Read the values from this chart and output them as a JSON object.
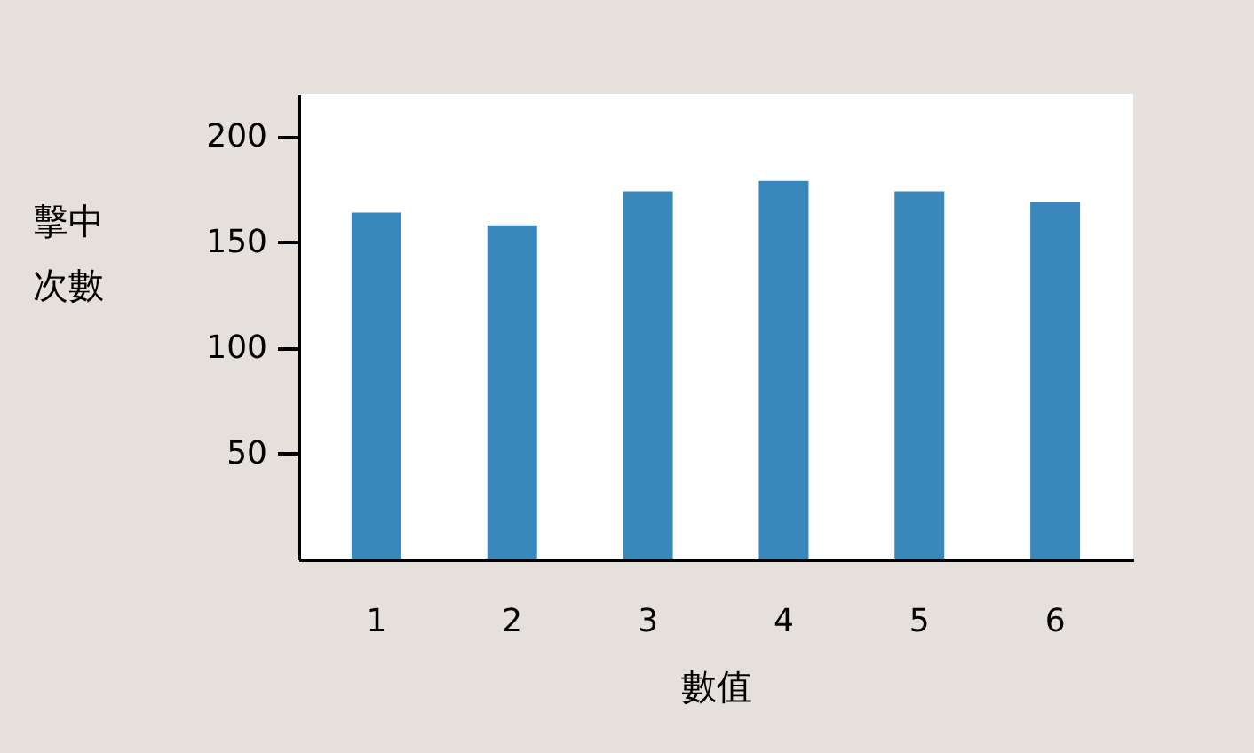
{
  "chart_data": {
    "type": "bar",
    "xlabel": "數值",
    "ylabel": "擊中次數",
    "categories": [
      "1",
      "2",
      "3",
      "4",
      "5",
      "6"
    ],
    "values": [
      164,
      158,
      174,
      179,
      174,
      169
    ],
    "color": "#3a87bb",
    "ylim": [
      0,
      220
    ],
    "yticks": [
      50,
      100,
      150,
      200
    ],
    "grid": false
  }
}
